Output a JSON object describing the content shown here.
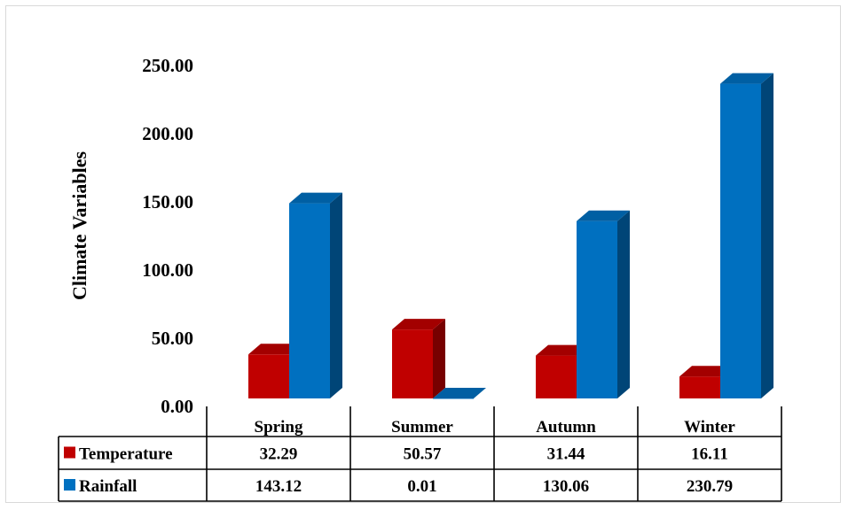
{
  "chart_data": {
    "type": "bar",
    "categories": [
      "Spring",
      "Summer",
      "Autumn",
      "Winter"
    ],
    "series": [
      {
        "name": "Temperature",
        "values": [
          32.29,
          50.57,
          31.44,
          16.11
        ],
        "color": "#c00000"
      },
      {
        "name": "Rainfall",
        "values": [
          143.12,
          0.01,
          130.06,
          230.79
        ],
        "color": "#0070c0"
      }
    ],
    "table_values": [
      [
        "32.29",
        "50.57",
        "31.44",
        "16.11"
      ],
      [
        "143.12",
        "0.01",
        "130.06",
        "230.79"
      ]
    ],
    "title": "",
    "xlabel": "",
    "ylabel": "Climate Variables",
    "ylim": [
      0,
      250
    ],
    "yticks": [
      "0.00",
      "50.00",
      "100.00",
      "150.00",
      "200.00",
      "250.00"
    ],
    "legend": "data table",
    "grid": false,
    "style": "3d-column"
  }
}
